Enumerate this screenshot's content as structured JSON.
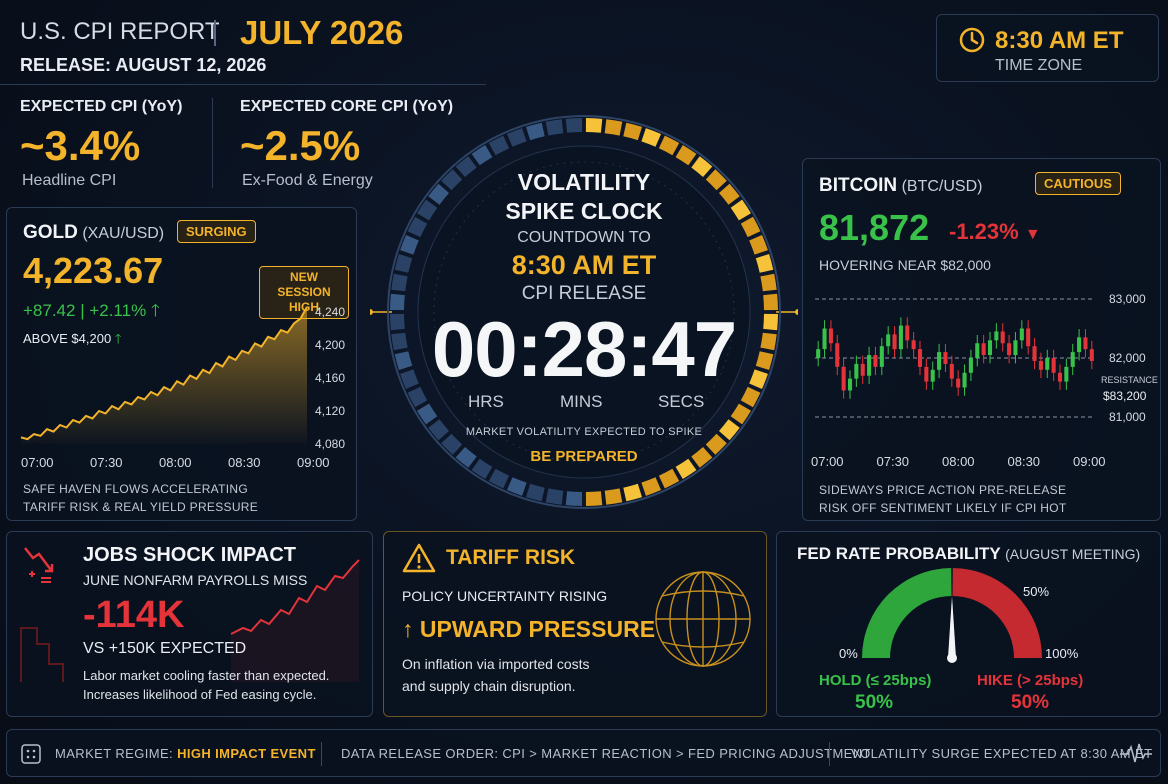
{
  "header": {
    "title": "U.S. CPI REPORT",
    "month": "JULY 2026",
    "release": "RELEASE: AUGUST 12, 2026"
  },
  "time_box": {
    "time": "8:30 AM ET",
    "zone": "TIME ZONE"
  },
  "expected": {
    "headline": {
      "label": "EXPECTED CPI (YoY)",
      "value": "~3.4%",
      "sub": "Headline CPI"
    },
    "core": {
      "label": "EXPECTED CORE CPI (YoY)",
      "value": "~2.5%",
      "sub": "Ex-Food & Energy"
    }
  },
  "gold": {
    "title": "GOLD",
    "symbol": "(XAU/USD)",
    "badge": "SURGING",
    "price": "4,223.67",
    "change": "+87.42 | +2.11%",
    "above": "ABOVE $4,200",
    "session_badge_1": "NEW SESSION",
    "session_badge_2": "HIGH",
    "note_1": "SAFE HAVEN FLOWS ACCELERATING",
    "note_2": "TARIFF RISK & REAL YIELD PRESSURE"
  },
  "bitcoin": {
    "title": "BITCOIN",
    "symbol": "(BTC/USD)",
    "badge": "CAUTIOUS",
    "price": "81,872",
    "change": "-1.23%",
    "hover": "HOVERING NEAR $82,000",
    "resistance_label": "RESISTANCE",
    "resistance_value": "$83,200",
    "note_1": "SIDEWAYS PRICE ACTION PRE-RELEASE",
    "note_2": "RISK OFF SENTIMENT LIKELY IF CPI HOT"
  },
  "clock": {
    "title_1": "VOLATILITY",
    "title_2": "SPIKE CLOCK",
    "countdown_to": "COUNTDOWN TO",
    "time": "8:30 AM ET",
    "release": "CPI RELEASE",
    "hours": "00",
    "minutes": "28",
    "seconds": "47",
    "hrs_label": "HRS",
    "mins_label": "MINS",
    "secs_label": "SECS",
    "warning": "MARKET VOLATILITY EXPECTED TO SPIKE",
    "prepare": "BE PREPARED"
  },
  "jobs": {
    "title": "JOBS SHOCK IMPACT",
    "subtitle": "JUNE NONFARM PAYROLLS MISS",
    "value": "-114K",
    "expected": "VS +150K EXPECTED",
    "desc_1": "Labor market cooling faster than expected.",
    "desc_2": "Increases likelihood of Fed easing cycle."
  },
  "tariff": {
    "title": "TARIFF RISK",
    "subtitle": "POLICY UNCERTAINTY RISING",
    "pressure": "UPWARD PRESSURE",
    "desc_1": "On inflation via imported costs",
    "desc_2": "and supply chain disruption."
  },
  "fed": {
    "title": "FED RATE PROBABILITY",
    "subtitle": "(AUGUST MEETING)",
    "hold_label": "HOLD (≤ 25bps)",
    "hold_value": "50%",
    "hike_label": "HIKE (> 25bps)",
    "hike_value": "50%",
    "tick_0": "0%",
    "tick_50": "50%",
    "tick_100": "100%",
    "hold_pct": 50
  },
  "footer": {
    "regime_label": "MARKET REGIME:",
    "regime_value": "HIGH IMPACT EVENT",
    "order": "DATA RELEASE ORDER: CPI > MARKET REACTION > FED PRICING ADJUSTMENT",
    "surge": "VOLATILITY SURGE EXPECTED AT 8:30 AM ET"
  },
  "colors": {
    "accent": "#f3b32a",
    "up": "#39c24a",
    "down": "#e4343a",
    "panel_border": "#2b3a55"
  },
  "chart_data": [
    {
      "type": "area",
      "series_of": "gold",
      "x_ticks": [
        "07:00",
        "07:30",
        "08:00",
        "08:30",
        "09:00"
      ],
      "y_ticks": [
        "4,240",
        "4,200",
        "4,160",
        "4,120",
        "4,080"
      ],
      "ylim": [
        4080,
        4240
      ],
      "values": [
        4088,
        4086,
        4092,
        4090,
        4098,
        4095,
        4103,
        4100,
        4109,
        4106,
        4114,
        4111,
        4120,
        4117,
        4126,
        4122,
        4131,
        4128,
        4137,
        4134,
        4143,
        4139,
        4149,
        4145,
        4156,
        4152,
        4163,
        4159,
        4170,
        4166,
        4178,
        4174,
        4186,
        4182,
        4193,
        4190,
        4202,
        4198,
        4210,
        4207,
        4218,
        4215,
        4226,
        4232,
        4246
      ]
    },
    {
      "type": "candlestick",
      "series_of": "bitcoin",
      "x_ticks": [
        "07:00",
        "07:30",
        "08:00",
        "08:30",
        "09:00"
      ],
      "y_ticks": [
        "83,000",
        "82,000",
        "81,000"
      ],
      "ylim": [
        80800,
        83200
      ],
      "closes": [
        82150,
        82500,
        82250,
        81850,
        81450,
        81650,
        81900,
        81700,
        82050,
        81850,
        82200,
        82400,
        82150,
        82550,
        82300,
        82150,
        81850,
        81600,
        81800,
        82100,
        81900,
        81650,
        81500,
        81750,
        82000,
        82250,
        82050,
        82300,
        82450,
        82250,
        82050,
        82300,
        82500,
        82200,
        81950,
        81800,
        82000,
        81750,
        81600,
        81850,
        82100,
        82350,
        82150,
        81950
      ]
    }
  ]
}
